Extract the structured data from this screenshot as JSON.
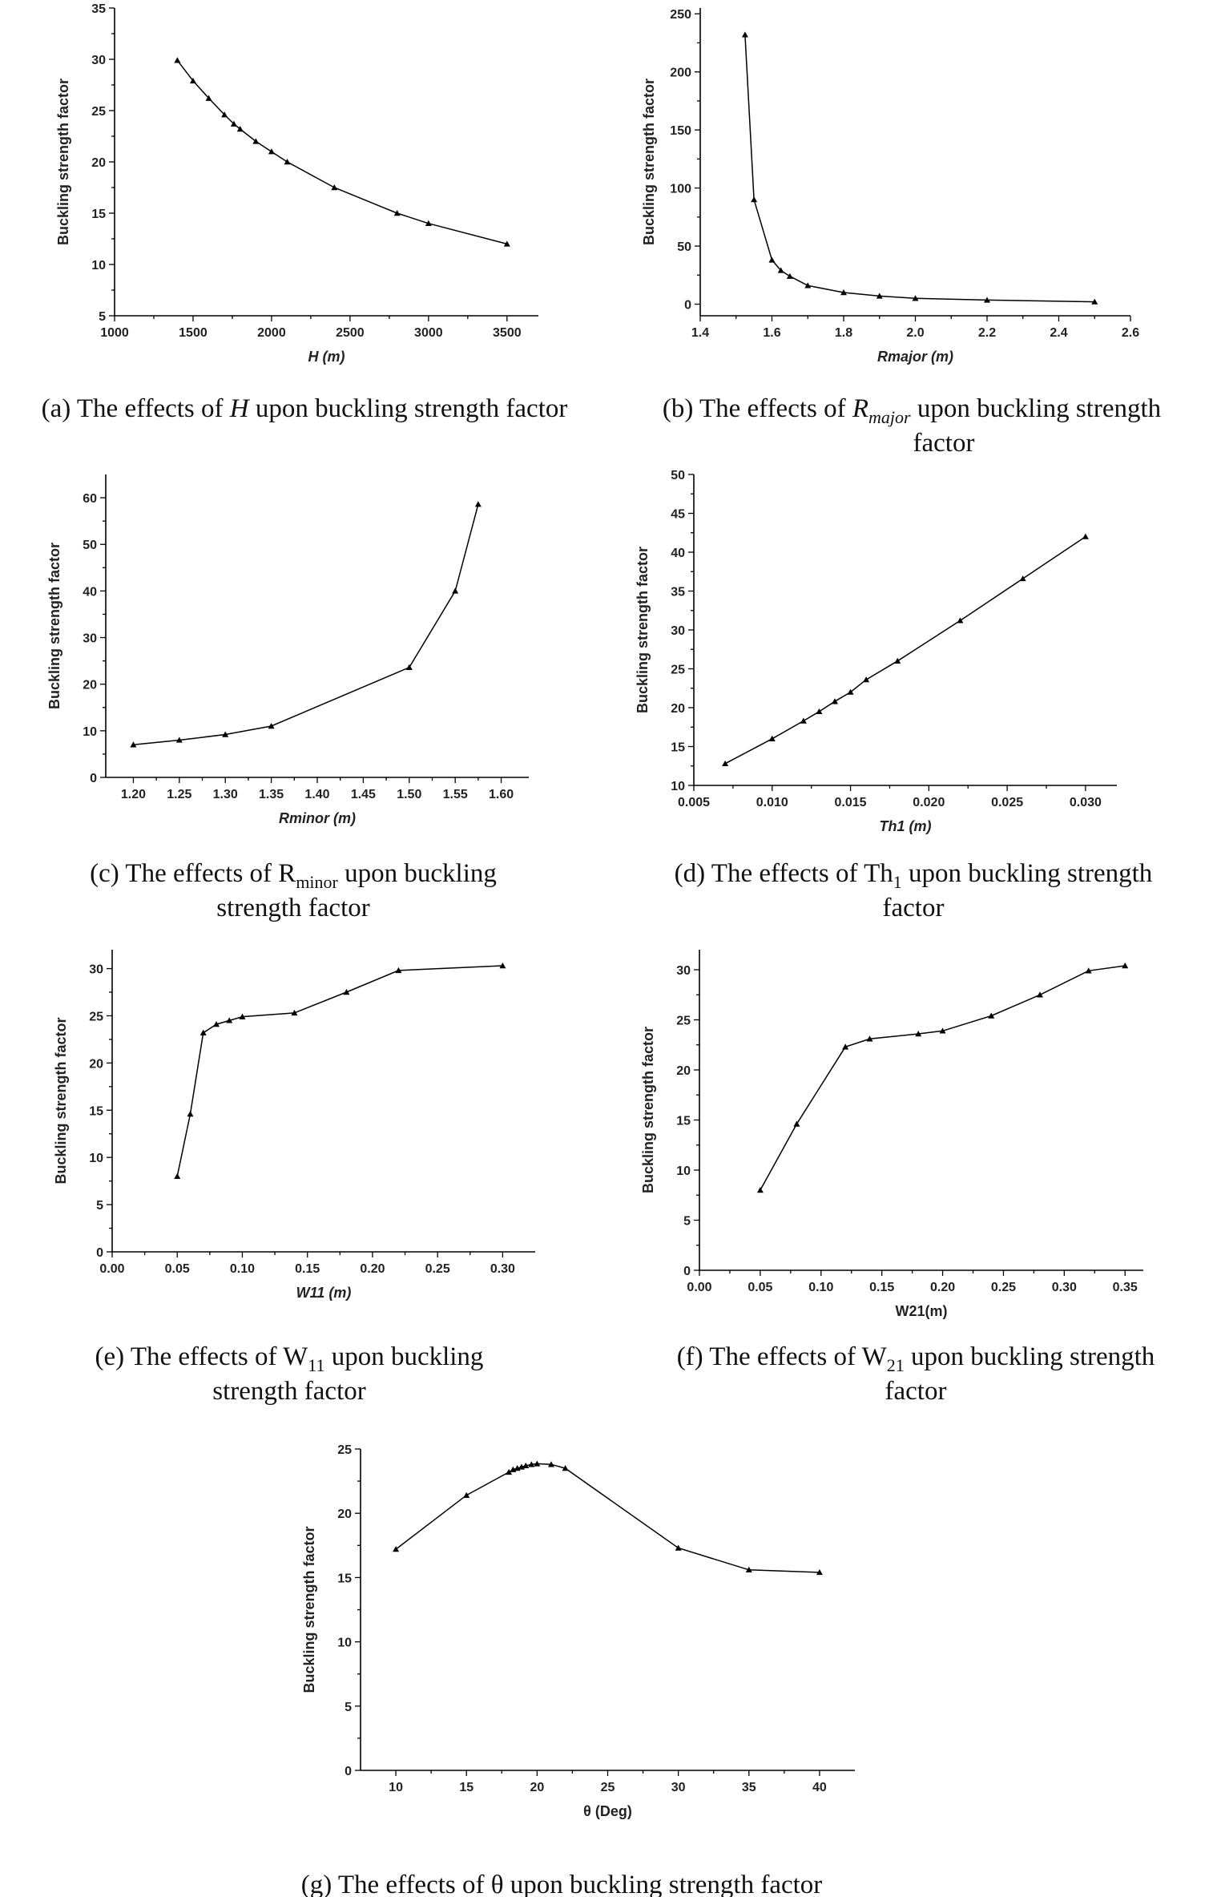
{
  "figure": {
    "charts": [
      {
        "id": "a",
        "type": "line",
        "title": "",
        "xlabel": "H (m)",
        "ylabel": "Buckling strength factor",
        "xlim": [
          1000,
          3700
        ],
        "ylim": [
          5,
          35
        ],
        "xticks": [
          1000,
          1500,
          2000,
          2500,
          3000,
          3500
        ],
        "yticks": [
          5,
          10,
          15,
          20,
          25,
          30,
          35
        ],
        "x": [
          1400,
          1500,
          1600,
          1700,
          1760,
          1800,
          1900,
          2000,
          2100,
          2400,
          2800,
          3000,
          3500
        ],
        "y": [
          29.9,
          27.9,
          26.2,
          24.6,
          23.7,
          23.2,
          22.0,
          21.0,
          20.0,
          17.5,
          15.0,
          14.0,
          12.0
        ],
        "caption": [
          "(a) The effects of ",
          "H",
          " upon buckling strength factor"
        ]
      },
      {
        "id": "b",
        "type": "line",
        "title": "",
        "xlabel": "Rmajor (m)",
        "ylabel": "Buckling strength factor",
        "xlim": [
          1.4,
          2.6
        ],
        "ylim": [
          -10,
          255
        ],
        "xticks": [
          1.4,
          1.6,
          1.8,
          2.0,
          2.2,
          2.4,
          2.6
        ],
        "yticks": [
          0,
          50,
          100,
          150,
          200,
          250
        ],
        "x": [
          1.525,
          1.55,
          1.6,
          1.625,
          1.65,
          1.7,
          1.8,
          1.9,
          2.0,
          2.2,
          2.5
        ],
        "y": [
          232,
          90,
          38,
          29,
          24,
          16,
          10,
          7,
          5,
          3.5,
          2
        ],
        "caption": [
          "(b) The effects of ",
          "Rmajor",
          " upon buckling strength",
          "factor"
        ]
      },
      {
        "id": "c",
        "type": "line",
        "title": "",
        "xlabel": "Rminor (m)",
        "ylabel": "Buckling strength factor",
        "xlim": [
          1.17,
          1.63
        ],
        "ylim": [
          0,
          65
        ],
        "xticks": [
          1.2,
          1.25,
          1.3,
          1.35,
          1.4,
          1.45,
          1.5,
          1.55,
          1.6
        ],
        "yticks": [
          0,
          10,
          20,
          30,
          40,
          50,
          60
        ],
        "x": [
          1.2,
          1.25,
          1.3,
          1.35,
          1.5,
          1.55,
          1.575
        ],
        "y": [
          7.0,
          8.0,
          9.2,
          11.0,
          23.6,
          40.0,
          58.6
        ],
        "caption": [
          "(c) The effects of R",
          "minor",
          " upon buckling",
          "strength factor"
        ]
      },
      {
        "id": "d",
        "type": "line",
        "title": "",
        "xlabel": "Th1 (m)",
        "ylabel": "Buckling strength factor",
        "xlim": [
          0.005,
          0.032
        ],
        "ylim": [
          10,
          50
        ],
        "xticks": [
          0.005,
          0.01,
          0.015,
          0.02,
          0.025,
          0.03
        ],
        "yticks": [
          10,
          15,
          20,
          25,
          30,
          35,
          40,
          45,
          50
        ],
        "x": [
          0.007,
          0.01,
          0.012,
          0.013,
          0.014,
          0.015,
          0.016,
          0.018,
          0.022,
          0.026,
          0.03
        ],
        "y": [
          12.8,
          16.0,
          18.3,
          19.5,
          20.8,
          22.0,
          23.6,
          26.0,
          31.2,
          36.6,
          42.0
        ],
        "caption": [
          "(d) The effects of Th",
          "1",
          " upon buckling strength",
          "factor"
        ]
      },
      {
        "id": "e",
        "type": "line",
        "title": "",
        "xlabel": "W11 (m)",
        "ylabel": "Buckling strength factor",
        "xlim": [
          0.0,
          0.325
        ],
        "ylim": [
          0,
          32
        ],
        "xticks": [
          0.0,
          0.05,
          0.1,
          0.15,
          0.2,
          0.25,
          0.3
        ],
        "yticks": [
          0,
          5,
          10,
          15,
          20,
          25,
          30
        ],
        "x": [
          0.05,
          0.06,
          0.07,
          0.08,
          0.09,
          0.1,
          0.14,
          0.18,
          0.22,
          0.3
        ],
        "y": [
          8.0,
          14.6,
          23.2,
          24.1,
          24.5,
          24.9,
          25.3,
          27.5,
          29.8,
          30.3
        ],
        "caption": [
          "(e) The effects of W",
          "11",
          " upon buckling",
          "strength factor"
        ]
      },
      {
        "id": "f",
        "type": "line",
        "title": "",
        "xlabel": "W21(m)",
        "ylabel": "Buckling strength factor",
        "xlim": [
          0.0,
          0.365
        ],
        "ylim": [
          0,
          32
        ],
        "xticks": [
          0.0,
          0.05,
          0.1,
          0.15,
          0.2,
          0.25,
          0.3,
          0.35
        ],
        "yticks": [
          0,
          5,
          10,
          15,
          20,
          25,
          30
        ],
        "x": [
          0.05,
          0.08,
          0.12,
          0.14,
          0.18,
          0.2,
          0.24,
          0.28,
          0.32,
          0.35
        ],
        "y": [
          8.0,
          14.6,
          22.3,
          23.1,
          23.6,
          23.9,
          25.4,
          27.5,
          29.9,
          30.4
        ],
        "caption": [
          "(f) The effects of W",
          "21",
          " upon buckling strength",
          "factor"
        ]
      },
      {
        "id": "g",
        "type": "line",
        "title": "",
        "xlabel": "θ (Deg)",
        "ylabel": "Buckling strength factor",
        "xlim": [
          7.5,
          42.5
        ],
        "ylim": [
          0,
          25
        ],
        "xticks": [
          10,
          15,
          20,
          25,
          30,
          35,
          40
        ],
        "yticks": [
          0,
          5,
          10,
          15,
          20,
          25
        ],
        "x": [
          10,
          15,
          18,
          18.3,
          18.6,
          18.9,
          19.2,
          19.6,
          20,
          21,
          22,
          30,
          35,
          40
        ],
        "y": [
          17.2,
          21.4,
          23.2,
          23.4,
          23.5,
          23.6,
          23.7,
          23.8,
          23.85,
          23.8,
          23.5,
          17.3,
          15.6,
          15.4
        ],
        "caption": [
          "(g)  The effects of θ upon buckling strength factor"
        ]
      }
    ]
  }
}
